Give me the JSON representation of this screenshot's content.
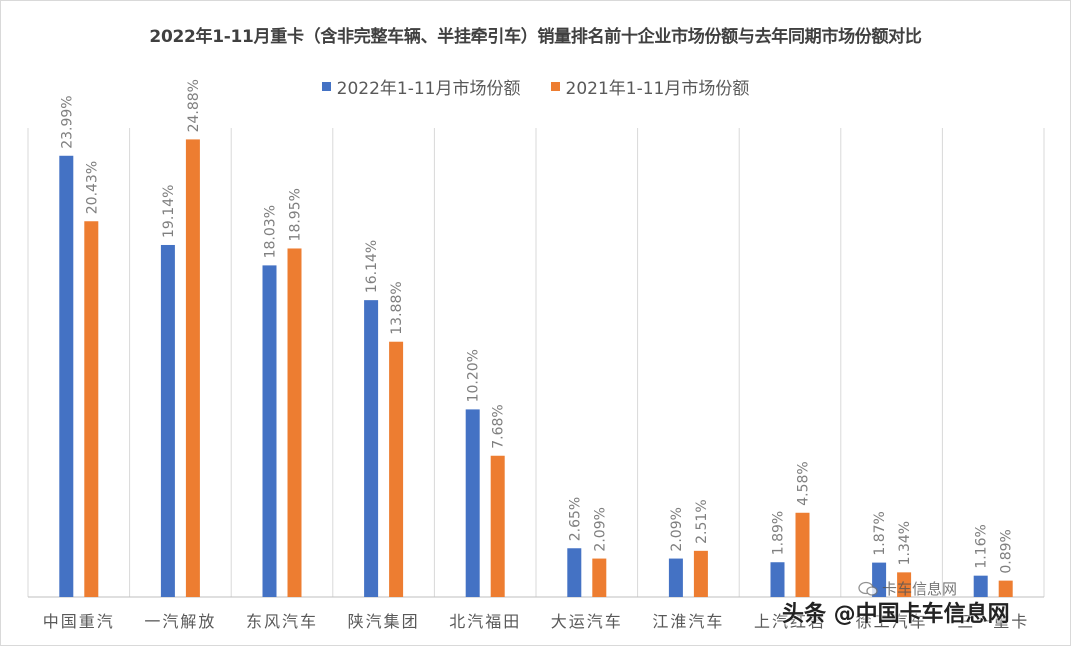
{
  "chart_data": {
    "type": "bar",
    "title": "2022年1-11月重卡（含非完整车辆、半挂牵引车）销量排名前十企业市场份额与去年同期市场份额对比",
    "categories": [
      "中国重汽",
      "一汽解放",
      "东风汽车",
      "陕汽集团",
      "北汽福田",
      "大运汽车",
      "江淮汽车",
      "上汽红岩",
      "徐工汽车",
      "三一重卡"
    ],
    "series": [
      {
        "name": "2022年1-11月市场份额",
        "color": "#4472C4",
        "values": [
          23.99,
          19.14,
          18.03,
          16.14,
          10.2,
          2.65,
          2.09,
          1.89,
          1.87,
          1.16
        ],
        "labels": [
          "23.99%",
          "19.14%",
          "18.03%",
          "16.14%",
          "10.20%",
          "2.65%",
          "2.09%",
          "1.89%",
          "1.87%",
          "1.16%"
        ]
      },
      {
        "name": "2021年1-11月市场份额",
        "color": "#ED7D31",
        "values": [
          20.43,
          24.88,
          18.95,
          13.88,
          7.68,
          2.09,
          2.51,
          4.58,
          1.34,
          0.89
        ],
        "labels": [
          "20.43%",
          "24.88%",
          "18.95%",
          "13.88%",
          "7.68%",
          "2.09%",
          "2.51%",
          "4.58%",
          "1.34%",
          "0.89%"
        ]
      }
    ],
    "ylim": [
      0,
      25.5
    ],
    "grid": "vertical category separators",
    "legend": "top-center"
  },
  "watermark": {
    "main": "头条 @中国卡车信息网",
    "secondary": "卡车信息网",
    "icon": "wechat-icon"
  }
}
